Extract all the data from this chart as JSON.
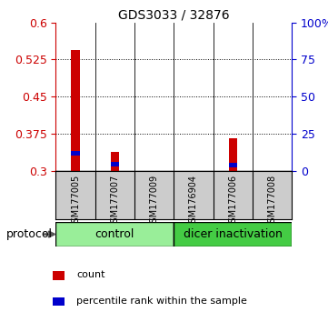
{
  "title": "GDS3033 / 32876",
  "samples": [
    "GSM177005",
    "GSM177007",
    "GSM177009",
    "GSM176904",
    "GSM177006",
    "GSM177008"
  ],
  "red_values": [
    0.545,
    0.338,
    0.3,
    0.3,
    0.365,
    0.3
  ],
  "blue_values": [
    0.335,
    0.313,
    0.3,
    0.3,
    0.312,
    0.3
  ],
  "ylim_left": [
    0.3,
    0.6
  ],
  "yticks_left": [
    0.3,
    0.375,
    0.45,
    0.525,
    0.6
  ],
  "yticks_right_labels": [
    "0",
    "25",
    "50",
    "75",
    "100%"
  ],
  "yticks_right_values": [
    0,
    25,
    50,
    75,
    100
  ],
  "control_color": "#99ee99",
  "dicer_color": "#44cc44",
  "sample_bg_color": "#cccccc",
  "protocol_label": "protocol",
  "control_label": "control",
  "dicer_label": "dicer inactivation",
  "red_color": "#cc0000",
  "blue_color": "#0000cc",
  "left_axis_color": "#cc0000",
  "right_axis_color": "#0000cc",
  "n_control": 3,
  "n_dicer": 3
}
